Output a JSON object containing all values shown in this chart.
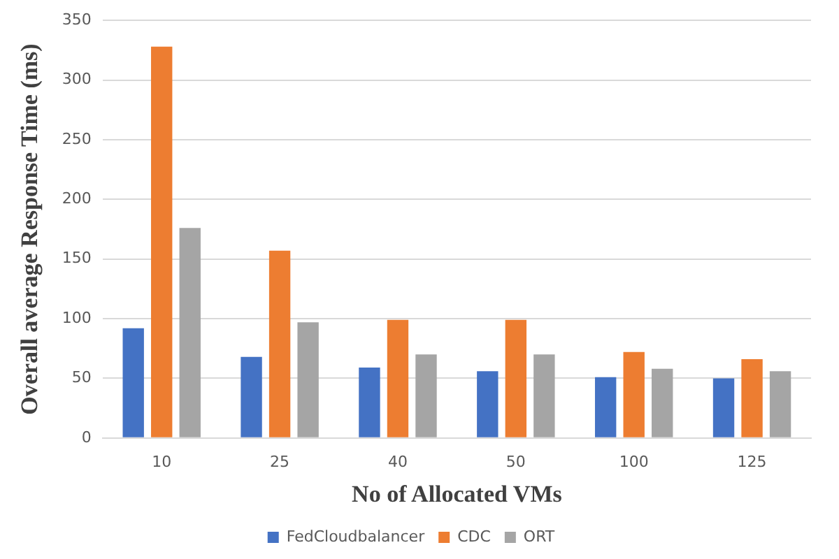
{
  "chart_data": {
    "type": "bar",
    "xlabel": "No of Allocated VMs",
    "ylabel": "Overall average Response Time (ms)",
    "categories": [
      "10",
      "25",
      "40",
      "50",
      "100",
      "125"
    ],
    "series": [
      {
        "name": "FedCloudbalancer",
        "color": "#4472c4",
        "values": [
          92,
          68,
          59,
          56,
          51,
          50
        ]
      },
      {
        "name": "CDC",
        "color": "#ed7d31",
        "values": [
          328,
          157,
          99,
          99,
          72,
          66
        ]
      },
      {
        "name": "ORT",
        "color": "#a5a5a5",
        "values": [
          176,
          97,
          70,
          70,
          58,
          56
        ]
      }
    ],
    "ylim": [
      0,
      350
    ],
    "yticks": [
      0,
      50,
      100,
      150,
      200,
      250,
      300,
      350
    ],
    "grid": "y",
    "legend": "bottom"
  }
}
